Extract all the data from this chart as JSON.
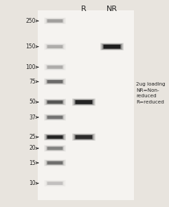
{
  "background_color": "#e8e4de",
  "gel_bg": "#dedad4",
  "title_R": "R",
  "title_NR": "NR",
  "annotation": "2ug loading\nNR=Non-\nreduced\nR=reduced",
  "marker_labels": [
    "250",
    "150",
    "100",
    "75",
    "50",
    "37",
    "25",
    "20",
    "15",
    "10"
  ],
  "marker_mw": [
    250,
    150,
    100,
    75,
    50,
    37,
    25,
    20,
    15,
    10
  ],
  "text_color": "#222222",
  "band_color": "#1a1a1a",
  "ladder_bands": [
    {
      "mw": 250,
      "intensity": 0.22
    },
    {
      "mw": 150,
      "intensity": 0.18
    },
    {
      "mw": 100,
      "intensity": 0.18
    },
    {
      "mw": 75,
      "intensity": 0.42
    },
    {
      "mw": 50,
      "intensity": 0.52
    },
    {
      "mw": 37,
      "intensity": 0.38
    },
    {
      "mw": 25,
      "intensity": 0.88
    },
    {
      "mw": 20,
      "intensity": 0.32
    },
    {
      "mw": 15,
      "intensity": 0.4
    },
    {
      "mw": 10,
      "intensity": 0.12
    }
  ],
  "R_bands": [
    {
      "mw": 50,
      "intensity": 0.88
    },
    {
      "mw": 25,
      "intensity": 0.8
    }
  ],
  "NR_bands": [
    {
      "mw": 150,
      "intensity": 0.95
    }
  ],
  "figw": 2.46,
  "figh": 3.0,
  "dpi": 100
}
